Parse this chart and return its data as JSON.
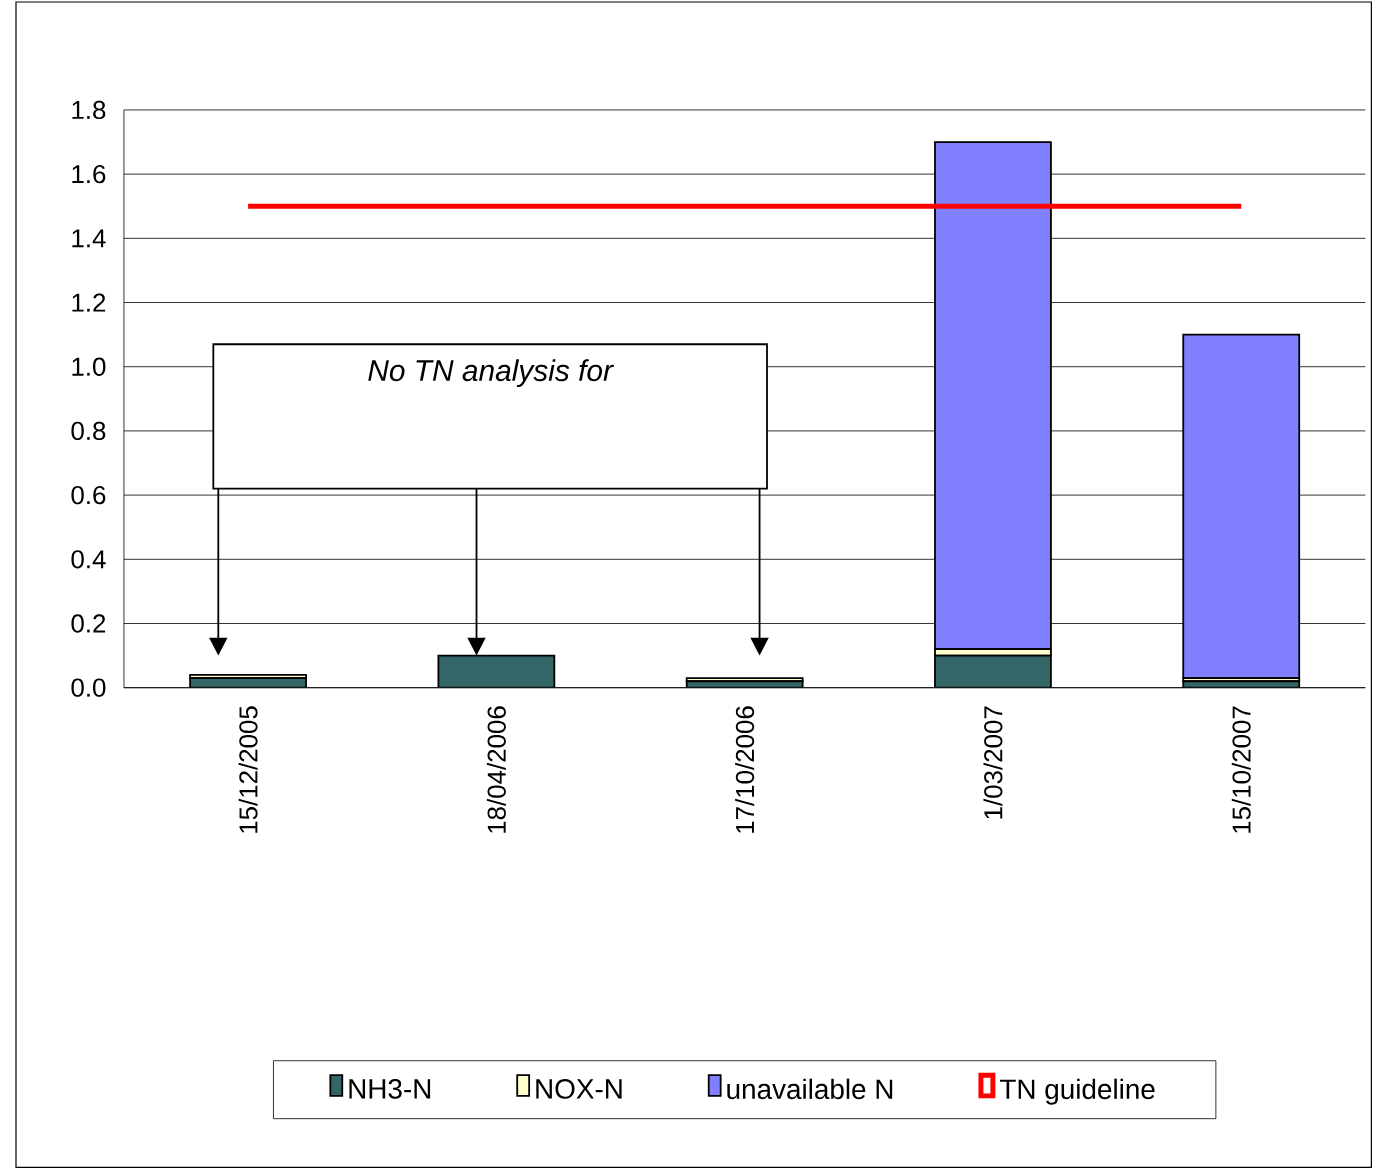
{
  "chart_data": {
    "type": "bar",
    "stacked": true,
    "categories": [
      "15/12/2005",
      "18/04/2006",
      "17/10/2006",
      "1/03/2007",
      "15/10/2007"
    ],
    "series": [
      {
        "name": "NH3-N",
        "color": "#336666",
        "values": [
          0.03,
          0.1,
          0.02,
          0.1,
          0.02
        ]
      },
      {
        "name": "NOX-N",
        "color": "#ffffcc",
        "values": [
          0.01,
          0,
          0.01,
          0.02,
          0.01
        ]
      },
      {
        "name": "unavailable N",
        "color": "#8080ff",
        "values": [
          0,
          0,
          0,
          1.58,
          1.07
        ]
      },
      {
        "name": "TN guideline",
        "type": "line",
        "color": "#ff0000",
        "values": [
          1.5,
          1.5,
          1.5,
          1.5,
          1.5
        ]
      }
    ],
    "ylim": [
      0,
      1.8
    ],
    "yticks": [
      {
        "value": 0,
        "label": "0.0"
      },
      0.2,
      0.4,
      0.6,
      0.8,
      {
        "value": 1,
        "label": "1.0"
      },
      1.2,
      1.4,
      1.6,
      1.8
    ],
    "grid": "y",
    "legend": "bottom",
    "annotations": [
      "No TN analysis for"
    ]
  }
}
